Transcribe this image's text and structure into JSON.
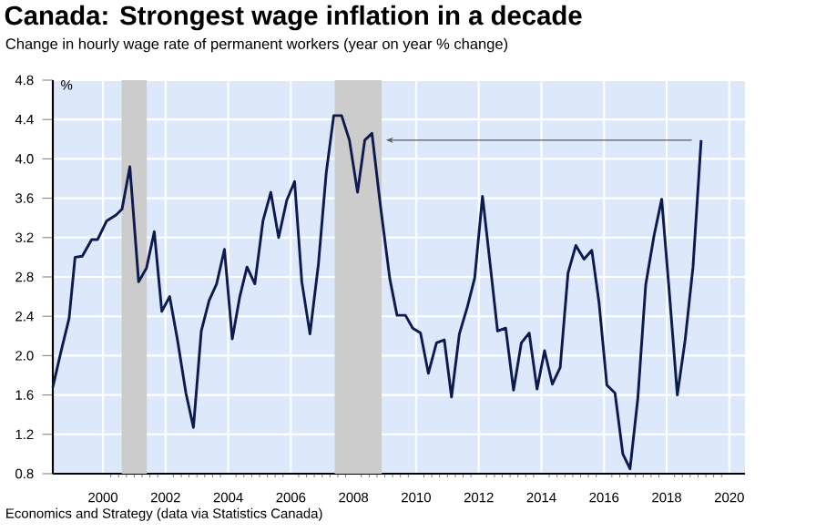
{
  "chart_data": {
    "type": "line",
    "title": "Canada: Strongest wage inflation in a decade",
    "subtitle": "Change in hourly wage rate of permanent workers (year on year % change)",
    "ylabel": "%",
    "annotations": [
      "Economics and Strategy (data via Statistics Canada)"
    ],
    "xlim": [
      1998.9,
      2021
    ],
    "xticks": [
      {
        "value": 2000.5,
        "label": "2000"
      },
      {
        "value": 2002.5,
        "label": "2002"
      },
      {
        "value": 2004.5,
        "label": "2004"
      },
      {
        "value": 2006.5,
        "label": "2006"
      },
      {
        "value": 2008.5,
        "label": "2008"
      },
      {
        "value": 2010.5,
        "label": "2010"
      },
      {
        "value": 2012.5,
        "label": "2012"
      },
      {
        "value": 2014.5,
        "label": "2014"
      },
      {
        "value": 2016.5,
        "label": "2016"
      },
      {
        "value": 2018.5,
        "label": "2018"
      },
      {
        "value": 2020.5,
        "label": "2020"
      }
    ],
    "ylim": [
      0.8,
      4.8
    ],
    "yticks": [
      0.8,
      1.2,
      1.6,
      {
        "value": 2,
        "label": "2.0"
      },
      2.4,
      2.8,
      3.2,
      3.6,
      {
        "value": 4,
        "label": "4.0"
      },
      4.4,
      4.8
    ],
    "grid": true,
    "bands": [
      {
        "axis": "x",
        "from": 2001.1,
        "to": 2001.9,
        "color": "#cccccc"
      },
      {
        "axis": "x",
        "from": 2007.9,
        "to": 2009.4,
        "color": "#cccccc"
      }
    ],
    "series": [
      {
        "color": "#0d1a4f",
        "line_style": "solid",
        "x": [
          1998.9,
          1999.16,
          1999.42,
          1999.61,
          1999.84,
          2000.14,
          2000.33,
          2000.62,
          2000.92,
          2001.11,
          2001.36,
          2001.64,
          2001.89,
          2002.14,
          2002.38,
          2002.63,
          2002.88,
          2003.15,
          2003.39,
          2003.64,
          2003.89,
          2004.13,
          2004.38,
          2004.63,
          2004.87,
          2005.1,
          2005.35,
          2005.61,
          2005.86,
          2006.11,
          2006.37,
          2006.62,
          2006.85,
          2007.11,
          2007.38,
          2007.63,
          2007.87,
          2008.12,
          2008.37,
          2008.63,
          2008.86,
          2009.09,
          2009.35,
          2009.66,
          2009.89,
          2010.16,
          2010.39,
          2010.64,
          2010.89,
          2011.15,
          2011.4,
          2011.63,
          2011.88,
          2012.14,
          2012.37,
          2012.62,
          2012.87,
          2013.1,
          2013.36,
          2013.61,
          2013.86,
          2014.11,
          2014.36,
          2014.6,
          2014.85,
          2015.1,
          2015.35,
          2015.6,
          2015.86,
          2016.11,
          2016.34,
          2016.59,
          2016.85,
          2017.1,
          2017.33,
          2017.58,
          2017.83,
          2018.09,
          2018.34,
          2018.59,
          2018.84,
          2019.09,
          2019.34,
          2019.6
        ],
        "values": [
          1.68,
          2.04,
          2.38,
          3.0,
          3.01,
          3.18,
          3.18,
          3.37,
          3.43,
          3.49,
          3.92,
          2.75,
          2.89,
          3.26,
          2.45,
          2.6,
          2.16,
          1.62,
          1.27,
          2.25,
          2.56,
          2.73,
          3.08,
          2.17,
          2.6,
          2.9,
          2.73,
          3.37,
          3.66,
          3.2,
          3.58,
          3.77,
          2.75,
          2.22,
          2.93,
          3.86,
          4.44,
          4.44,
          4.19,
          3.66,
          4.19,
          4.26,
          3.55,
          2.78,
          2.41,
          2.41,
          2.28,
          2.23,
          1.82,
          2.13,
          2.16,
          1.58,
          2.22,
          2.5,
          2.79,
          3.62,
          2.91,
          2.25,
          2.28,
          1.65,
          2.13,
          2.23,
          1.66,
          2.05,
          1.71,
          1.88,
          2.84,
          3.12,
          2.98,
          3.07,
          2.54,
          1.7,
          1.62,
          1.0,
          0.85,
          1.57,
          2.72,
          3.21,
          3.59,
          2.62,
          1.6,
          2.16,
          2.9,
          4.19
        ]
      }
    ]
  }
}
